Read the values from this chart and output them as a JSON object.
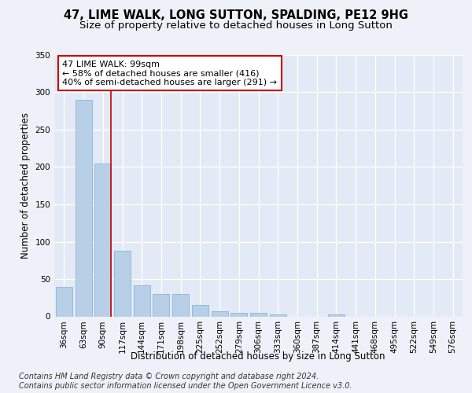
{
  "title_line1": "47, LIME WALK, LONG SUTTON, SPALDING, PE12 9HG",
  "title_line2": "Size of property relative to detached houses in Long Sutton",
  "xlabel": "Distribution of detached houses by size in Long Sutton",
  "ylabel": "Number of detached properties",
  "categories": [
    "36sqm",
    "63sqm",
    "90sqm",
    "117sqm",
    "144sqm",
    "171sqm",
    "198sqm",
    "225sqm",
    "252sqm",
    "279sqm",
    "306sqm",
    "333sqm",
    "360sqm",
    "387sqm",
    "414sqm",
    "441sqm",
    "468sqm",
    "495sqm",
    "522sqm",
    "549sqm",
    "576sqm"
  ],
  "values": [
    40,
    290,
    205,
    88,
    42,
    30,
    30,
    15,
    7,
    5,
    5,
    3,
    0,
    0,
    3,
    0,
    0,
    0,
    0,
    0,
    0
  ],
  "bar_color": "#b8cfe8",
  "bar_edge_color": "#7aadd4",
  "vline_x_idx": 2,
  "vline_color": "#cc0000",
  "annotation_text": "47 LIME WALK: 99sqm\n← 58% of detached houses are smaller (416)\n40% of semi-detached houses are larger (291) →",
  "annotation_box_color": "#ffffff",
  "annotation_box_edge_color": "#cc0000",
  "ylim": [
    0,
    350
  ],
  "yticks": [
    0,
    50,
    100,
    150,
    200,
    250,
    300,
    350
  ],
  "bg_color": "#eef2f8",
  "plot_bg_color": "#e4eaf5",
  "grid_color": "#ffffff",
  "footer_line1": "Contains HM Land Registry data © Crown copyright and database right 2024.",
  "footer_line2": "Contains public sector information licensed under the Open Government Licence v3.0.",
  "title_fontsize": 10.5,
  "subtitle_fontsize": 9.5,
  "axis_label_fontsize": 8.5,
  "tick_fontsize": 7.5,
  "annotation_fontsize": 8,
  "footer_fontsize": 7
}
